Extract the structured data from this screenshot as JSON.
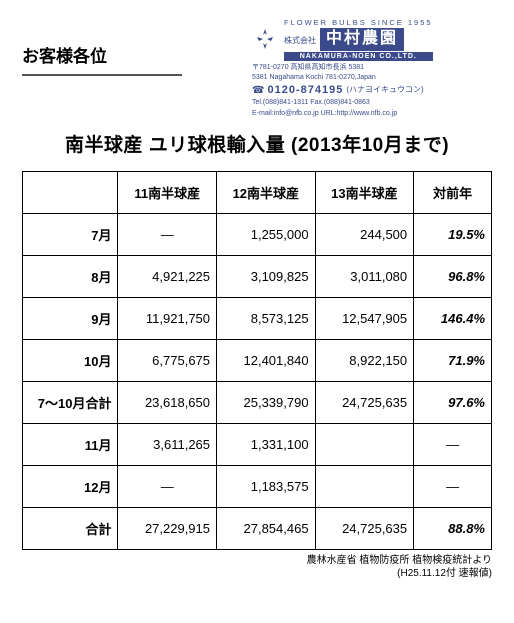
{
  "header": {
    "addressee": "お客様各位",
    "slogan": "FLOWER BULBS SINCE 1955",
    "company_label": "株式会社",
    "company_name": "中村農園",
    "company_en": "NAKAMURA-NOEN CO.,LTD.",
    "addr_jp": "〒781-0270 高知県高知市長浜 5381",
    "addr_en": "5381 Nagahama Kochi 781-0270,Japan",
    "freedial_number": "0120-874195",
    "freedial_paren": "(ハナヨイキュウコン)",
    "tel_fax": "Tel.(088)841-1311 Fax.(088)841-0863",
    "email_url": "E-mail:info@nfb.co.jp URL:http://www.nfb.co.jp"
  },
  "title": "南半球産 ユリ球根輸入量 (2013年10月まで)",
  "table": {
    "columns": [
      "",
      "11南半球産",
      "12南半球産",
      "13南半球産",
      "対前年"
    ],
    "rows": [
      {
        "label": "7月",
        "c11": "—",
        "c12": "1,255,000",
        "c13": "244,500",
        "pct": "19.5%"
      },
      {
        "label": "8月",
        "c11": "4,921,225",
        "c12": "3,109,825",
        "c13": "3,011,080",
        "pct": "96.8%"
      },
      {
        "label": "9月",
        "c11": "11,921,750",
        "c12": "8,573,125",
        "c13": "12,547,905",
        "pct": "146.4%"
      },
      {
        "label": "10月",
        "c11": "6,775,675",
        "c12": "12,401,840",
        "c13": "8,922,150",
        "pct": "71.9%"
      },
      {
        "label": "7～10月合計",
        "c11": "23,618,650",
        "c12": "25,339,790",
        "c13": "24,725,635",
        "pct": "97.6%"
      },
      {
        "label": "11月",
        "c11": "3,611,265",
        "c12": "1,331,100",
        "c13": "",
        "pct": "—"
      },
      {
        "label": "12月",
        "c11": "—",
        "c12": "1,183,575",
        "c13": "",
        "pct": "—"
      },
      {
        "label": "合計",
        "c11": "27,229,915",
        "c12": "27,854,465",
        "c13": "24,725,635",
        "pct": "88.8%"
      }
    ]
  },
  "source": {
    "line1": "農林水産省 植物防疫所 植物検疫統計より",
    "line2": "(H25.11.12付 速報値)"
  },
  "colors": {
    "text": "#000000",
    "company": "#3a4a8a",
    "background": "#ffffff"
  }
}
